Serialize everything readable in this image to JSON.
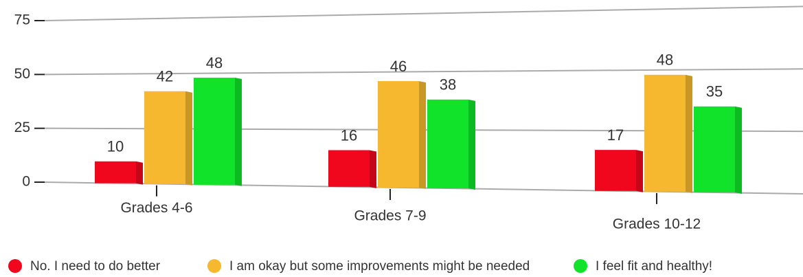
{
  "chart_data": {
    "type": "bar",
    "categories": [
      "Grades 4-6",
      "Grades 7-9",
      "Grades 10-12"
    ],
    "series": [
      {
        "name": "No. I need to do better",
        "color": "#f0071e",
        "values": [
          10,
          16,
          17
        ]
      },
      {
        "name": "I am okay but some improvements might be needed",
        "color": "#f5b82e",
        "values": [
          42,
          46,
          48
        ]
      },
      {
        "name": "I feel fit and healthy!",
        "color": "#10e32a",
        "values": [
          48,
          38,
          35
        ]
      }
    ],
    "ylim": [
      0,
      75
    ],
    "yticks": [
      0,
      25,
      50,
      75
    ],
    "grid": true,
    "legend": "bottom"
  }
}
